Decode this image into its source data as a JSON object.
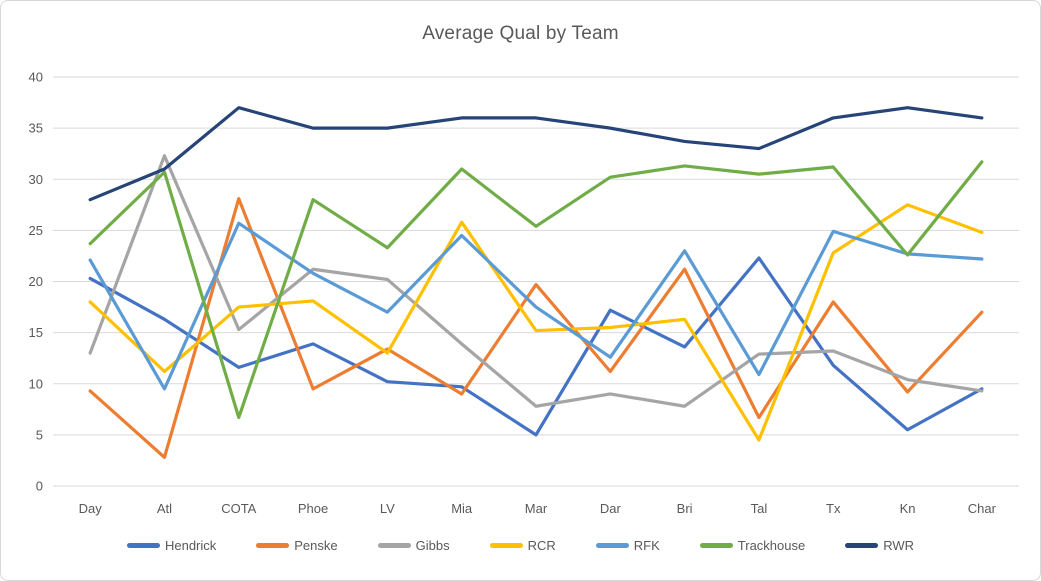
{
  "chart_data": {
    "type": "line",
    "title": "Average Qual by Team",
    "categories": [
      "Day",
      "Atl",
      "COTA",
      "Phoe",
      "LV",
      "Mia",
      "Mar",
      "Dar",
      "Bri",
      "Tal",
      "Tx",
      "Kn",
      "Char"
    ],
    "series": [
      {
        "name": "Hendrick",
        "color": "#4472C4",
        "values": [
          20.3,
          16.3,
          11.6,
          13.9,
          10.2,
          9.7,
          5.0,
          17.2,
          13.6,
          22.3,
          11.8,
          5.5,
          9.5
        ]
      },
      {
        "name": "Penske",
        "color": "#ED7D31",
        "values": [
          9.3,
          2.8,
          28.1,
          9.5,
          13.4,
          9.0,
          19.7,
          11.2,
          21.2,
          6.7,
          18.0,
          9.2,
          17.0
        ]
      },
      {
        "name": "Gibbs",
        "color": "#A5A5A5",
        "values": [
          13.0,
          32.3,
          15.3,
          21.2,
          20.2,
          13.9,
          7.8,
          9.0,
          7.8,
          12.9,
          13.2,
          10.4,
          9.3
        ]
      },
      {
        "name": "RCR",
        "color": "#FFC000",
        "values": [
          18.0,
          11.2,
          17.5,
          18.1,
          13.0,
          25.8,
          15.2,
          15.5,
          16.3,
          4.5,
          22.8,
          27.5,
          24.8
        ]
      },
      {
        "name": "RFK",
        "color": "#5B9BD5",
        "values": [
          22.1,
          9.5,
          25.7,
          20.8,
          17.0,
          24.5,
          17.5,
          12.6,
          23.0,
          10.9,
          24.9,
          22.7,
          22.2
        ]
      },
      {
        "name": "Trackhouse",
        "color": "#70AD47",
        "values": [
          23.7,
          30.7,
          6.7,
          28.0,
          23.3,
          31.0,
          25.4,
          30.2,
          31.3,
          30.5,
          31.2,
          22.6,
          31.7
        ]
      },
      {
        "name": "RWR",
        "color": "#264478",
        "values": [
          28.0,
          31.0,
          37.0,
          35.0,
          35.0,
          36.0,
          36.0,
          35.0,
          33.7,
          33.0,
          36.0,
          37.0,
          36.0
        ]
      }
    ],
    "xlabel": "",
    "ylabel": "",
    "ylim": [
      0,
      40
    ],
    "ytick_step": 5,
    "yticks": [
      0,
      5,
      10,
      15,
      20,
      25,
      30,
      35,
      40
    ],
    "grid": true,
    "gridline_color": "#D9D9D9",
    "text_color": "#595959",
    "legend_position": "bottom"
  }
}
